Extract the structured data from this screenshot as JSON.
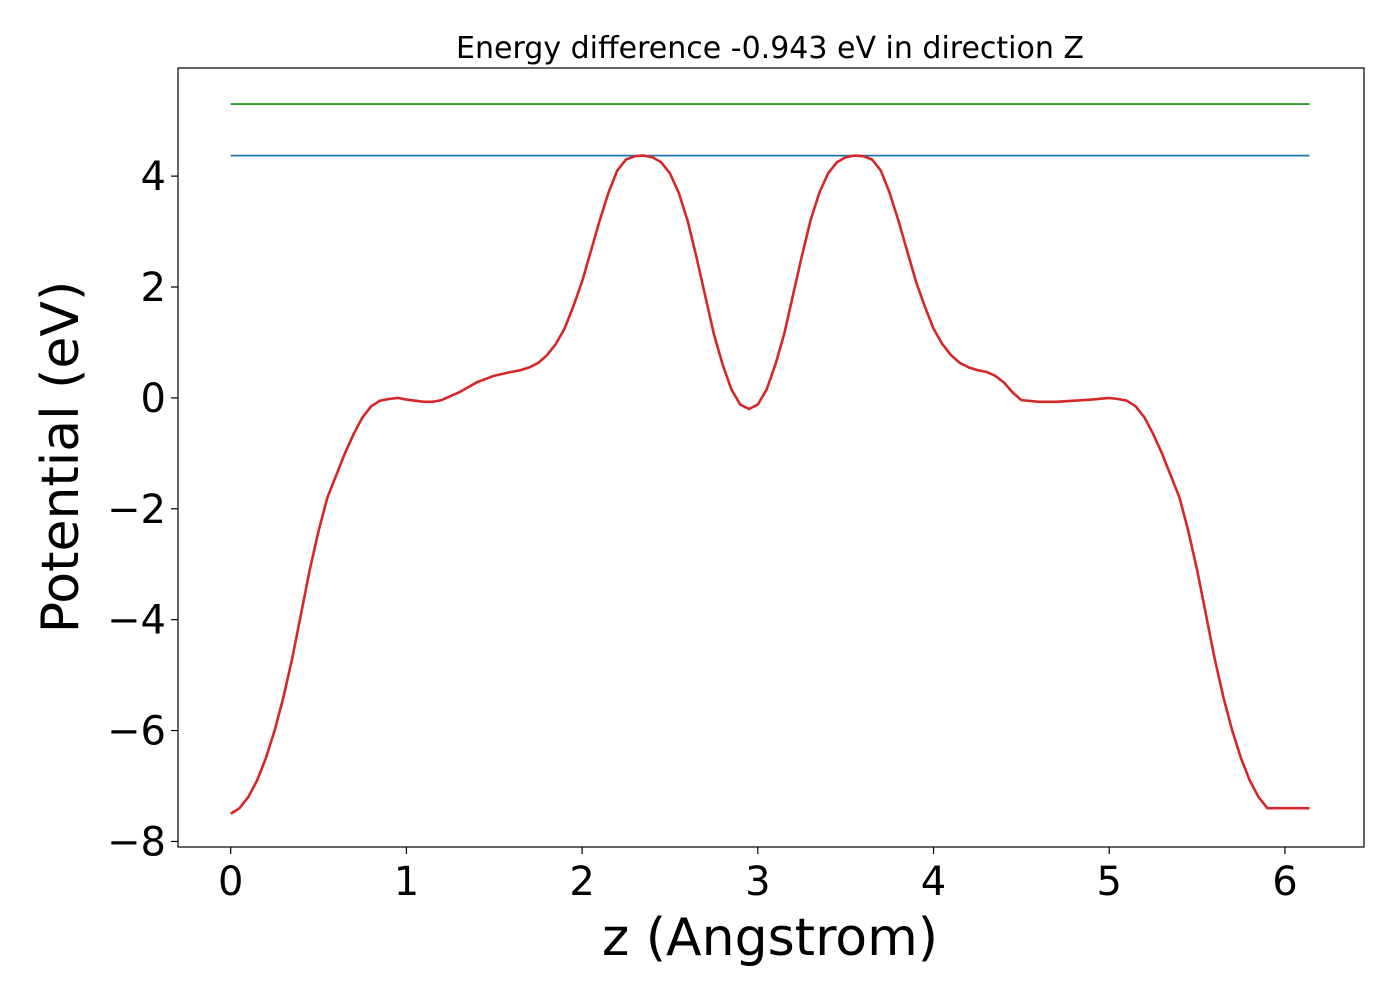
{
  "chart_data": {
    "type": "line",
    "title": "Energy difference -0.943 eV in direction Z",
    "xlabel": "z (Angstrom)",
    "ylabel": "Potential (eV)",
    "xlim": [
      -0.3,
      6.45
    ],
    "ylim": [
      -8.1,
      5.95
    ],
    "x_ticks": [
      0,
      1,
      2,
      3,
      4,
      5,
      6
    ],
    "y_ticks": [
      -8,
      -6,
      -4,
      -2,
      0,
      2,
      4
    ],
    "x_tick_labels": [
      "0",
      "1",
      "2",
      "3",
      "4",
      "5",
      "6"
    ],
    "y_tick_labels": [
      "−8",
      "−6",
      "−4",
      "−2",
      "0",
      "2",
      "4"
    ],
    "grid": false,
    "series": [
      {
        "color": "#2ca02c",
        "x": [
          0,
          6.14
        ],
        "y": [
          5.3,
          5.3
        ]
      },
      {
        "color": "#1f77b4",
        "x": [
          0,
          6.14
        ],
        "y": [
          4.37,
          4.37
        ]
      },
      {
        "color": "#d62728",
        "x": [
          0,
          0.05,
          0.1,
          0.15,
          0.2,
          0.25,
          0.3,
          0.35,
          0.4,
          0.45,
          0.5,
          0.55,
          0.6,
          0.65,
          0.7,
          0.75,
          0.8,
          0.85,
          0.9,
          0.95,
          1.0,
          1.05,
          1.1,
          1.15,
          1.2,
          1.3,
          1.4,
          1.5,
          1.6,
          1.65,
          1.7,
          1.75,
          1.8,
          1.85,
          1.9,
          1.95,
          2.0,
          2.05,
          2.1,
          2.15,
          2.2,
          2.25,
          2.3,
          2.35,
          2.4,
          2.45,
          2.5,
          2.55,
          2.6,
          2.65,
          2.7,
          2.75,
          2.8,
          2.85,
          2.9,
          2.95,
          3.0,
          3.05,
          3.1,
          3.15,
          3.2,
          3.25,
          3.3,
          3.35,
          3.4,
          3.45,
          3.5,
          3.55,
          3.6,
          3.65,
          3.7,
          3.75,
          3.8,
          3.85,
          3.9,
          3.95,
          4.0,
          4.05,
          4.1,
          4.15,
          4.2,
          4.25,
          4.3,
          4.35,
          4.4,
          4.45,
          4.5,
          4.6,
          4.7,
          4.8,
          4.9,
          5.0,
          5.05,
          5.1,
          5.15,
          5.2,
          5.25,
          5.3,
          5.35,
          5.4,
          5.45,
          5.5,
          5.55,
          5.6,
          5.65,
          5.7,
          5.75,
          5.8,
          5.85,
          5.9,
          5.95,
          6.0,
          6.05,
          6.1,
          6.14
        ],
        "y": [
          -7.5,
          -7.4,
          -7.2,
          -6.9,
          -6.5,
          -6.0,
          -5.4,
          -4.7,
          -3.9,
          -3.1,
          -2.4,
          -1.8,
          -1.4,
          -1.0,
          -0.65,
          -0.35,
          -0.15,
          -0.05,
          -0.02,
          0.0,
          -0.03,
          -0.05,
          -0.07,
          -0.07,
          -0.04,
          0.1,
          0.28,
          0.4,
          0.47,
          0.5,
          0.55,
          0.63,
          0.77,
          0.97,
          1.25,
          1.65,
          2.1,
          2.65,
          3.2,
          3.7,
          4.1,
          4.3,
          4.36,
          4.37,
          4.34,
          4.25,
          4.05,
          3.7,
          3.2,
          2.55,
          1.85,
          1.15,
          0.6,
          0.15,
          -0.12,
          -0.2,
          -0.12,
          0.15,
          0.6,
          1.15,
          1.85,
          2.55,
          3.2,
          3.7,
          4.05,
          4.25,
          4.34,
          4.37,
          4.36,
          4.3,
          4.1,
          3.7,
          3.2,
          2.65,
          2.1,
          1.65,
          1.25,
          0.97,
          0.77,
          0.63,
          0.55,
          0.5,
          0.47,
          0.4,
          0.28,
          0.1,
          -0.04,
          -0.07,
          -0.07,
          -0.05,
          -0.03,
          0.0,
          -0.02,
          -0.05,
          -0.15,
          -0.35,
          -0.65,
          -1.0,
          -1.4,
          -1.8,
          -2.4,
          -3.1,
          -3.9,
          -4.7,
          -5.4,
          -6.0,
          -6.5,
          -6.9,
          -7.2,
          -7.4,
          -7.4,
          -7.4,
          -7.4,
          -7.4,
          -7.4
        ]
      }
    ]
  }
}
